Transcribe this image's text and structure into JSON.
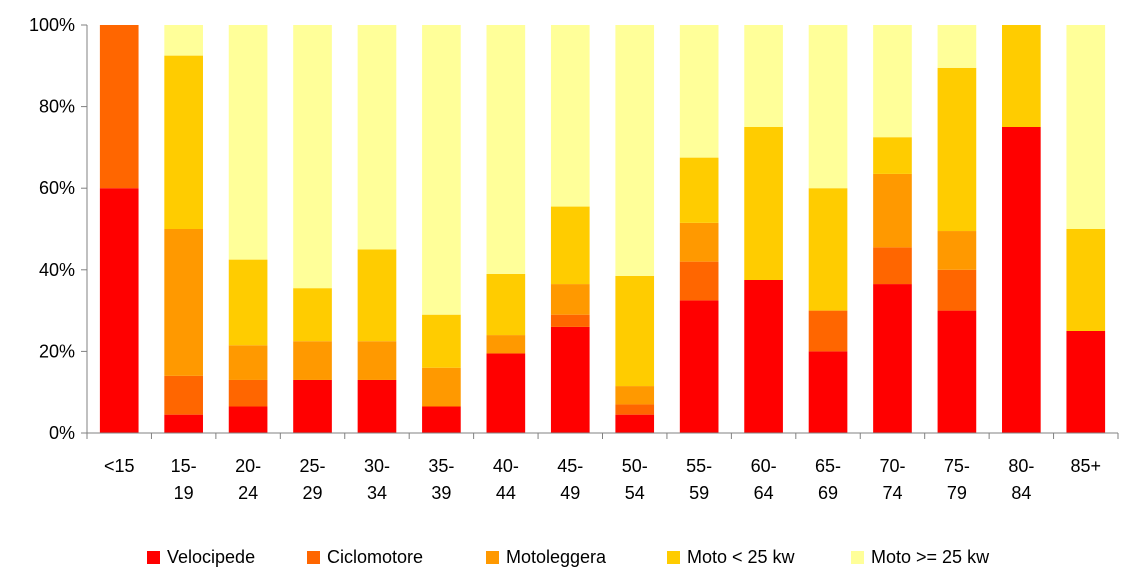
{
  "chart_data": {
    "type": "bar",
    "stacked": true,
    "percent": true,
    "categories": [
      [
        "<15"
      ],
      [
        "15-",
        "19"
      ],
      [
        "20-",
        "24"
      ],
      [
        "25-",
        "29"
      ],
      [
        "30-",
        "34"
      ],
      [
        "35-",
        "39"
      ],
      [
        "40-",
        "44"
      ],
      [
        "45-",
        "49"
      ],
      [
        "50-",
        "54"
      ],
      [
        "55-",
        "59"
      ],
      [
        "60-",
        "64"
      ],
      [
        "65-",
        "69"
      ],
      [
        "70-",
        "74"
      ],
      [
        "75-",
        "79"
      ],
      [
        "80-",
        "84"
      ],
      [
        "85+"
      ]
    ],
    "series": [
      {
        "name": "Velocipede",
        "color": "#ff0000",
        "values": [
          60,
          4.5,
          6.5,
          13,
          13,
          6.5,
          19.5,
          26,
          4.5,
          32.5,
          37.5,
          20,
          36.5,
          30,
          75,
          25
        ]
      },
      {
        "name": "Ciclomotore",
        "color": "#ff6600",
        "values": [
          40,
          9.5,
          6.5,
          0,
          0,
          0,
          0,
          3,
          2.5,
          9.5,
          0,
          10,
          9,
          10,
          0,
          0
        ]
      },
      {
        "name": "Motoleggera",
        "color": "#ff9900",
        "values": [
          0,
          36,
          8.5,
          9.5,
          9.5,
          9.5,
          4.5,
          7.5,
          4.5,
          9.5,
          0,
          0,
          18,
          9.5,
          0,
          0
        ]
      },
      {
        "name": "Moto < 25 kw",
        "color": "#ffcc00",
        "values": [
          0,
          42.5,
          21,
          13,
          22.5,
          13,
          15,
          19,
          27,
          16,
          37.5,
          30,
          9,
          40,
          25,
          25
        ]
      },
      {
        "name": "Moto >= 25 kw",
        "color": "#ffff99",
        "values": [
          0,
          7.5,
          57.5,
          64.5,
          55,
          71,
          61,
          44.5,
          61.5,
          32.5,
          25,
          40,
          27.5,
          10.5,
          0,
          50
        ]
      }
    ],
    "yticks": [
      "0%",
      "20%",
      "40%",
      "60%",
      "80%",
      "100%"
    ],
    "ylim": [
      0,
      100
    ],
    "legend_position": "bottom",
    "grid": false
  }
}
